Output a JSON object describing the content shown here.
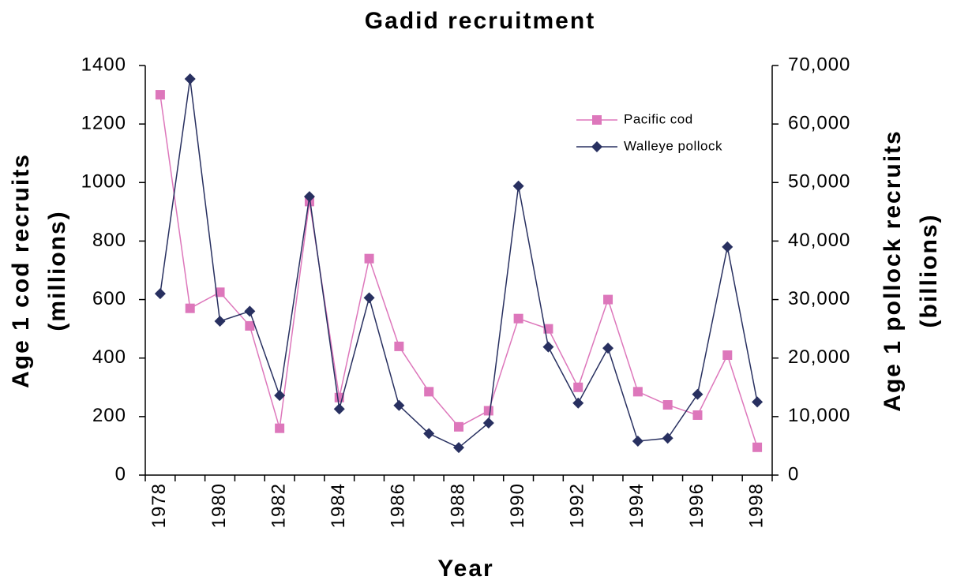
{
  "chart_data": {
    "type": "line",
    "title": "Gadid recruitment",
    "xlabel": "Year",
    "ylabel": [
      "Age 1 cod recruits",
      "(millions)"
    ],
    "y2label": [
      "Age 1 pollock recruits",
      "(billions)"
    ],
    "categories": [
      "1978",
      null,
      "1980",
      null,
      "1982",
      null,
      "1984",
      null,
      "1986",
      null,
      "1988",
      null,
      "1990",
      null,
      "1992",
      null,
      "1994",
      null,
      "1996",
      null,
      "1998"
    ],
    "series": [
      {
        "name": "Pacific cod",
        "color": "#dd77bb",
        "marker": "square",
        "axis": "y",
        "values": [
          1300,
          570,
          625,
          510,
          160,
          935,
          265,
          740,
          440,
          285,
          165,
          220,
          535,
          500,
          300,
          600,
          285,
          240,
          205,
          410,
          95
        ]
      },
      {
        "name": "Walleye pollock",
        "color": "#283060",
        "marker": "diamond",
        "axis": "y2",
        "values": [
          31000,
          67700,
          26300,
          28000,
          13600,
          47600,
          11300,
          30300,
          11900,
          7100,
          4700,
          8900,
          49400,
          21900,
          12300,
          21700,
          5800,
          6300,
          13800,
          39000,
          12500
        ]
      }
    ],
    "ylim": [
      0,
      1400
    ],
    "yticks": [
      0,
      200,
      400,
      600,
      800,
      1000,
      1200,
      1400
    ],
    "y2lim": [
      0,
      70000
    ],
    "y2ticks": [
      0,
      {
        "value": 10000,
        "label": "10,000"
      },
      {
        "value": 20000,
        "label": "20,000"
      },
      {
        "value": 30000,
        "label": "30,000"
      },
      {
        "value": 40000,
        "label": "40,000"
      },
      {
        "value": 50000,
        "label": "50,000"
      },
      {
        "value": 60000,
        "label": "60,000"
      },
      {
        "value": 70000,
        "label": "70,000"
      }
    ],
    "grid": false,
    "legend": "upper right"
  }
}
